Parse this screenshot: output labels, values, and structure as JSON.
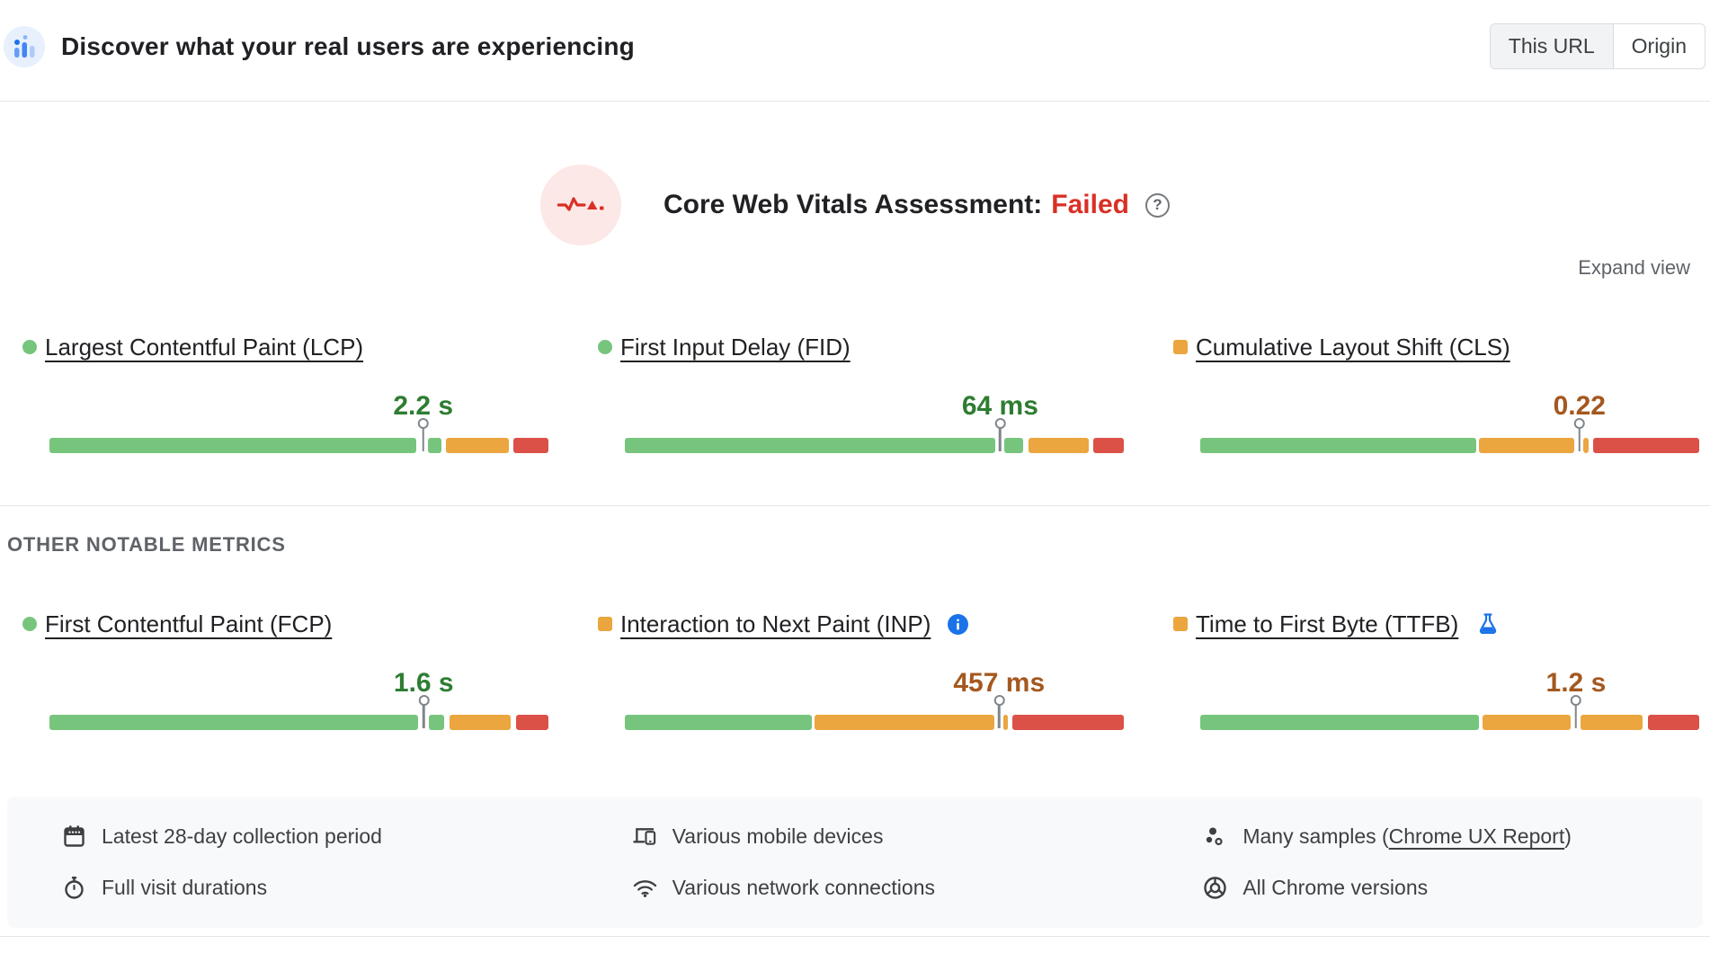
{
  "header": {
    "title": "Discover what your real users are experiencing",
    "toggle": {
      "this_url": "This URL",
      "origin": "Origin",
      "selected": "This URL"
    }
  },
  "assessment": {
    "label": "Core Web Vitals Assessment:",
    "status": "Failed",
    "help_glyph": "?",
    "expand_label": "Expand view"
  },
  "sections": {
    "other_heading": "OTHER NOTABLE METRICS"
  },
  "colors": {
    "bar_good": "#77c57d",
    "bar_ni": "#eba63f",
    "bar_poor": "#db5148",
    "value_good": "#2e7d32",
    "value_ni": "#a4581f",
    "failed_red": "#d93025",
    "accent_blue": "#1a73e8"
  },
  "core_metrics": [
    {
      "id": "lcp",
      "name": "Largest Contentful Paint (LCP)",
      "value": "2.2 s",
      "rating": "good",
      "marker_pct": 74.9,
      "segments": [
        {
          "color": "green",
          "start": 0,
          "end": 73.6
        },
        {
          "color": "green",
          "start": 75.9,
          "end": 78.6
        },
        {
          "color": "orange",
          "start": 79.5,
          "end": 92.1
        },
        {
          "color": "red",
          "start": 92.9,
          "end": 100
        }
      ]
    },
    {
      "id": "fid",
      "name": "First Input Delay (FID)",
      "value": "64 ms",
      "rating": "good",
      "marker_pct": 75.2,
      "segments": [
        {
          "color": "green",
          "start": 0,
          "end": 74.3
        },
        {
          "color": "green",
          "start": 76.1,
          "end": 79.9
        },
        {
          "color": "orange",
          "start": 80.9,
          "end": 93.0
        },
        {
          "color": "red",
          "start": 93.9,
          "end": 100
        }
      ]
    },
    {
      "id": "cls",
      "name": "Cumulative Layout Shift (CLS)",
      "value": "0.22",
      "rating": "ni",
      "marker_pct": 76.0,
      "segments": [
        {
          "color": "green",
          "start": 0,
          "end": 55.4
        },
        {
          "color": "orange",
          "start": 55.9,
          "end": 75.0
        },
        {
          "color": "orange",
          "start": 76.8,
          "end": 77.9
        },
        {
          "color": "red",
          "start": 78.8,
          "end": 100
        }
      ]
    }
  ],
  "other_metrics": [
    {
      "id": "fcp",
      "name": "First Contentful Paint (FCP)",
      "value": "1.6 s",
      "rating": "good",
      "marker_pct": 75.0,
      "segments": [
        {
          "color": "green",
          "start": 0,
          "end": 73.9
        },
        {
          "color": "green",
          "start": 76.0,
          "end": 79.1
        },
        {
          "color": "orange",
          "start": 80.1,
          "end": 92.5
        },
        {
          "color": "red",
          "start": 93.6,
          "end": 100
        }
      ]
    },
    {
      "id": "inp",
      "name": "Interaction to Next Paint (INP)",
      "value": "457 ms",
      "rating": "ni",
      "marker_pct": 75.0,
      "segments": [
        {
          "color": "green",
          "start": 0,
          "end": 37.5
        },
        {
          "color": "orange",
          "start": 38.1,
          "end": 74.0
        },
        {
          "color": "orange",
          "start": 75.8,
          "end": 76.8
        },
        {
          "color": "red",
          "start": 77.7,
          "end": 100
        }
      ]
    },
    {
      "id": "ttfb",
      "name": "Time to First Byte (TTFB)",
      "value": "1.2 s",
      "rating": "ni",
      "marker_pct": 75.3,
      "segments": [
        {
          "color": "green",
          "start": 0,
          "end": 55.8
        },
        {
          "color": "orange",
          "start": 56.5,
          "end": 74.2
        },
        {
          "color": "orange",
          "start": 76.2,
          "end": 88.7
        },
        {
          "color": "red",
          "start": 89.8,
          "end": 100
        }
      ]
    }
  ],
  "footer": {
    "col1": [
      {
        "icon": "calendar-icon",
        "text": "Latest 28-day collection period"
      },
      {
        "icon": "stopwatch-icon",
        "text": "Full visit durations"
      }
    ],
    "col2": [
      {
        "icon": "devices-icon",
        "text": "Various mobile devices"
      },
      {
        "icon": "network-icon",
        "text": "Various network connections"
      }
    ],
    "col3_samples": {
      "prefix": "Many samples (",
      "link": "Chrome UX Report",
      "suffix": ")"
    },
    "col3_chrome": {
      "text": "All Chrome versions"
    }
  }
}
